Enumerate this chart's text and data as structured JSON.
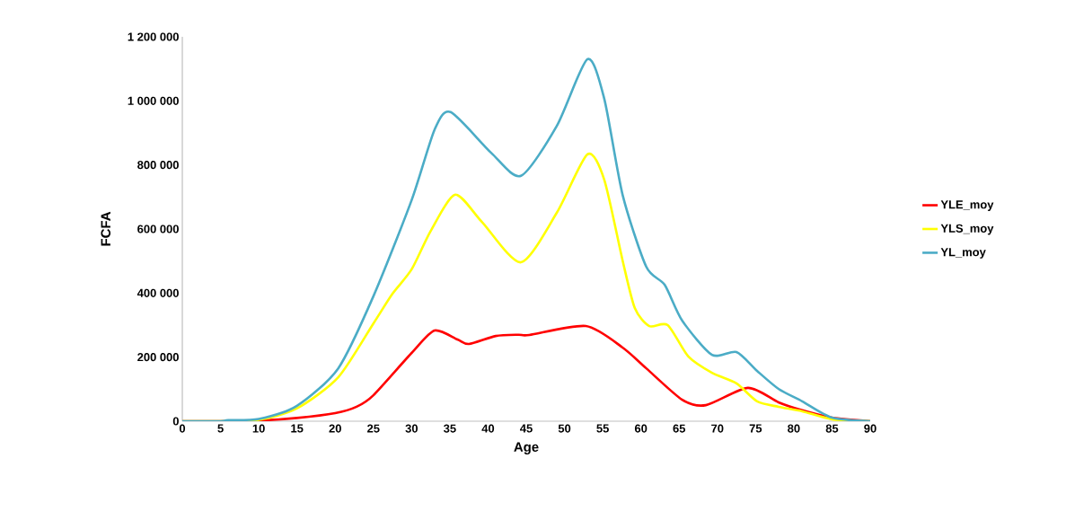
{
  "chart_data": {
    "type": "line",
    "xlabel": "Age",
    "ylabel": "FCFA",
    "xlim": [
      0,
      90
    ],
    "xticks": [
      0,
      5,
      10,
      15,
      20,
      25,
      30,
      35,
      40,
      45,
      50,
      55,
      60,
      65,
      70,
      75,
      80,
      85,
      90
    ],
    "ylim": [
      0,
      1200000
    ],
    "yticks": [
      {
        "value": 0,
        "label": "0"
      },
      {
        "value": 200000,
        "label": "200 000"
      },
      {
        "value": 400000,
        "label": "400 000"
      },
      {
        "value": 600000,
        "label": "600 000"
      },
      {
        "value": 800000,
        "label": "800 000"
      },
      {
        "value": 1000000,
        "label": "1 000 000"
      },
      {
        "value": 1200000,
        "label": "1 200 000"
      }
    ],
    "grid": false,
    "legend": "right",
    "marker": "none",
    "line_style": "solid",
    "series": [
      {
        "name": "YLE_moy",
        "color": "#ff0000",
        "x": [
          0,
          5,
          10,
          15,
          20,
          22.8,
          25,
          30,
          33,
          36,
          37.5,
          41,
          44,
          45.4,
          52.8,
          57.6,
          60.7,
          65.4,
          68.5,
          74,
          78,
          81.1,
          85,
          90
        ],
        "values": [
          0,
          0,
          2000,
          10000,
          25000,
          45000,
          81000,
          213000,
          283000,
          255000,
          241000,
          266000,
          270000,
          269000,
          297000,
          230000,
          165000,
          67000,
          50000,
          104000,
          59000,
          34000,
          11000,
          0
        ]
      },
      {
        "name": "YLS_moy",
        "color": "#ffff00",
        "x": [
          0,
          5,
          10,
          15,
          20.4,
          25,
          27.5,
          30,
          32.5,
          35.7,
          39.2,
          44.3,
          49,
          53,
          55.2,
          57.6,
          59.2,
          61.1,
          63.5,
          66.2,
          69.3,
          72.5,
          75.2,
          78,
          81.1,
          85,
          90
        ],
        "values": [
          0,
          0,
          4000,
          40000,
          137000,
          305000,
          398000,
          474000,
          594000,
          707000,
          622000,
          496000,
          651000,
          833000,
          754000,
          502000,
          353000,
          297000,
          300000,
          202000,
          151000,
          118000,
          62000,
          45000,
          31000,
          6000,
          0
        ]
      },
      {
        "name": "YL_moy",
        "color": "#4bacc6",
        "x": [
          0,
          5,
          6,
          10,
          15,
          20.4,
          25,
          30,
          33,
          35.1,
          40.4,
          44.3,
          49,
          53,
          55.2,
          57.6,
          60.7,
          63.1,
          65.4,
          69.3,
          72.5,
          75.2,
          78,
          81.1,
          85,
          90
        ],
        "values": [
          0,
          0,
          3000,
          7000,
          48000,
          165000,
          390000,
          690000,
          910000,
          965000,
          838000,
          766000,
          922000,
          1130000,
          1007000,
          707000,
          482000,
          426000,
          314000,
          207000,
          216000,
          157000,
          101000,
          62000,
          11000,
          0
        ]
      }
    ]
  }
}
